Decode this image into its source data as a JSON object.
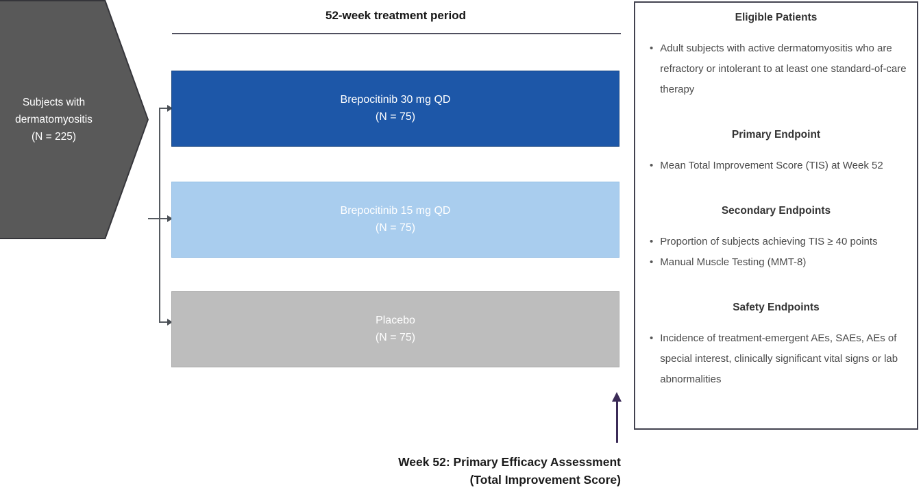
{
  "colors": {
    "arm_high_dose": "#1d57a8",
    "arm_low_dose": "#a9cdee",
    "arm_placebo": "#bdbdbd",
    "population_shape": "#595959",
    "assessment_arrow": "#3b2b57",
    "connector": "#555a60"
  },
  "population": {
    "line1": "Subjects with",
    "line2": "dermatomyositis",
    "line3": "(N = 225)"
  },
  "treatment_period": {
    "label": "52-week treatment period"
  },
  "arms": [
    {
      "name": "Brepocitinib 30 mg QD",
      "n": "(N = 75)"
    },
    {
      "name": "Brepocitinib 15 mg QD",
      "n": "(N = 75)"
    },
    {
      "name": "Placebo",
      "n": "(N = 75)"
    }
  ],
  "assessment": {
    "line1": "Week 52: Primary Efficacy Assessment",
    "line2": "(Total Improvement Score)"
  },
  "info_panel": {
    "bullet_glyph": "•",
    "sections": [
      {
        "heading": "Eligible Patients",
        "bullets": [
          "Adult subjects with active dermatomyositis who are refractory or intolerant to at least one standard-of-care therapy"
        ]
      },
      {
        "heading": "Primary Endpoint",
        "bullets": [
          "Mean Total Improvement Score (TIS) at Week 52"
        ]
      },
      {
        "heading": "Secondary Endpoints",
        "bullets": [
          "Proportion of subjects achieving TIS ≥ 40 points",
          "Manual Muscle Testing (MMT-8)"
        ]
      },
      {
        "heading": "Safety Endpoints",
        "bullets": [
          "Incidence of treatment-emergent AEs, SAEs, AEs of special interest, clinically significant vital signs or lab abnormalities"
        ]
      }
    ]
  }
}
